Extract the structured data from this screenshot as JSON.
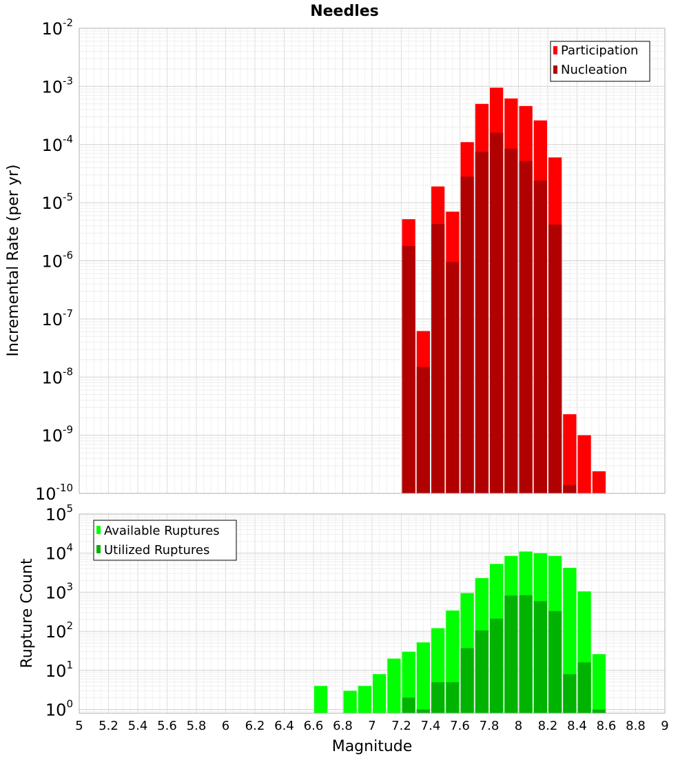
{
  "title": "Needles",
  "chart_data": [
    {
      "type": "bar",
      "name": "rate-panel",
      "ylabel": "Incremental Rate (per yr)",
      "yscale": "log",
      "ylim": [
        1e-10,
        0.01
      ],
      "y_ticks": [
        {
          "base": "10",
          "exp": "-2"
        },
        {
          "base": "10",
          "exp": "-3"
        },
        {
          "base": "10",
          "exp": "-4"
        },
        {
          "base": "10",
          "exp": "-5"
        },
        {
          "base": "10",
          "exp": "-6"
        },
        {
          "base": "10",
          "exp": "-7"
        },
        {
          "base": "10",
          "exp": "-8"
        },
        {
          "base": "10",
          "exp": "-9"
        },
        {
          "base": "10",
          "exp": "-10"
        }
      ],
      "legend": {
        "placement": "top-right"
      },
      "series": [
        {
          "name": "Participation",
          "color": "#ff0000",
          "points": [
            [
              7.25,
              5.2e-06
            ],
            [
              7.35,
              6.2e-08
            ],
            [
              7.45,
              1.9e-05
            ],
            [
              7.55,
              7e-06
            ],
            [
              7.65,
              0.00011
            ],
            [
              7.75,
              0.0005
            ],
            [
              7.85,
              0.00095
            ],
            [
              7.95,
              0.00062
            ],
            [
              8.05,
              0.00046
            ],
            [
              8.15,
              0.00026
            ],
            [
              8.25,
              6e-05
            ],
            [
              8.35,
              2.3e-09
            ],
            [
              8.45,
              1e-09
            ],
            [
              8.55,
              2.4e-10
            ]
          ]
        },
        {
          "name": "Nucleation",
          "color": "#b00000",
          "points": [
            [
              7.25,
              1.8e-06
            ],
            [
              7.35,
              1.5e-08
            ],
            [
              7.45,
              4.3e-06
            ],
            [
              7.55,
              9.5e-07
            ],
            [
              7.65,
              2.8e-05
            ],
            [
              7.75,
              7.5e-05
            ],
            [
              7.85,
              0.00016
            ],
            [
              7.95,
              8.5e-05
            ],
            [
              8.05,
              5.2e-05
            ],
            [
              8.15,
              2.4e-05
            ],
            [
              8.25,
              4.2e-06
            ],
            [
              8.35,
              1.4e-10
            ]
          ]
        }
      ]
    },
    {
      "type": "bar",
      "name": "count-panel",
      "ylabel": "Rupture Count",
      "xlabel": "Magnitude",
      "yscale": "log",
      "ylim": [
        0.8,
        100000.0
      ],
      "y_ticks": [
        {
          "base": "10",
          "exp": "5"
        },
        {
          "base": "10",
          "exp": "4"
        },
        {
          "base": "10",
          "exp": "3"
        },
        {
          "base": "10",
          "exp": "2"
        },
        {
          "base": "10",
          "exp": "1"
        },
        {
          "base": "10",
          "exp": "0"
        }
      ],
      "xlim": [
        5,
        9
      ],
      "x_ticks": [
        "5",
        "5.2",
        "5.4",
        "5.6",
        "5.8",
        "6",
        "6.2",
        "6.4",
        "6.6",
        "6.8",
        "7",
        "7.2",
        "7.4",
        "7.6",
        "7.8",
        "8",
        "8.2",
        "8.4",
        "8.6",
        "8.8",
        "9"
      ],
      "legend": {
        "placement": "top-left"
      },
      "series": [
        {
          "name": "Available Ruptures",
          "color": "#00ff00",
          "points": [
            [
              6.65,
              4
            ],
            [
              6.85,
              3
            ],
            [
              6.95,
              4
            ],
            [
              7.05,
              8
            ],
            [
              7.15,
              20
            ],
            [
              7.25,
              30
            ],
            [
              7.35,
              52
            ],
            [
              7.45,
              120
            ],
            [
              7.55,
              340
            ],
            [
              7.65,
              950
            ],
            [
              7.75,
              2300
            ],
            [
              7.85,
              5300
            ],
            [
              7.95,
              8500
            ],
            [
              8.05,
              11000
            ],
            [
              8.15,
              10000
            ],
            [
              8.25,
              8500
            ],
            [
              8.35,
              4200
            ],
            [
              8.45,
              1050
            ],
            [
              8.55,
              26
            ]
          ]
        },
        {
          "name": "Utilized Ruptures",
          "color": "#00b300",
          "points": [
            [
              7.25,
              2
            ],
            [
              7.35,
              1
            ],
            [
              7.45,
              5
            ],
            [
              7.55,
              5
            ],
            [
              7.65,
              37
            ],
            [
              7.75,
              105
            ],
            [
              7.85,
              210
            ],
            [
              7.95,
              820
            ],
            [
              8.05,
              840
            ],
            [
              8.15,
              590
            ],
            [
              8.25,
              330
            ],
            [
              8.35,
              8
            ],
            [
              8.45,
              16
            ],
            [
              8.55,
              1
            ]
          ]
        }
      ]
    }
  ]
}
